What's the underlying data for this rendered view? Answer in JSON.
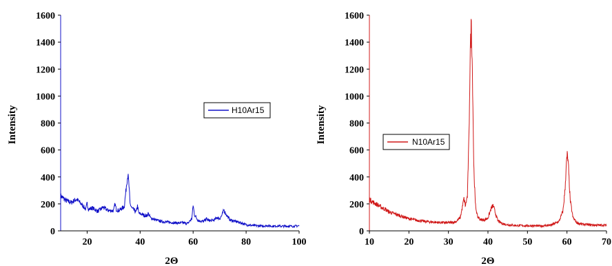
{
  "chart_data": [
    {
      "type": "line",
      "title": "",
      "xlabel": "2Θ",
      "ylabel": "Intensity",
      "xlim": [
        10,
        100
      ],
      "ylim": [
        0,
        1600
      ],
      "xticks": [
        20,
        40,
        60,
        80,
        100
      ],
      "yticks": [
        0,
        200,
        400,
        600,
        800,
        1000,
        1200,
        1400,
        1600
      ],
      "grid": false,
      "legend": "middle-right",
      "series": [
        {
          "name": "H10Ar15",
          "color": "#1010c8",
          "x": [
            10,
            12,
            14,
            16,
            18,
            19.5,
            20,
            20.5,
            22,
            24,
            26,
            28,
            30,
            30.5,
            31,
            32,
            33,
            34,
            34.6,
            35,
            35.4,
            35.8,
            36.2,
            37,
            38.5,
            39,
            39.5,
            41,
            42.5,
            43,
            44,
            46,
            48,
            50,
            52,
            54,
            56,
            58,
            59.5,
            60,
            60.5,
            62,
            64,
            65,
            66,
            68,
            69,
            70,
            71,
            71.6,
            72.5,
            74,
            76,
            78,
            80,
            82,
            84,
            86,
            88,
            90,
            92,
            94,
            96,
            98,
            100
          ],
          "y": [
            260,
            225,
            210,
            235,
            195,
            160,
            205,
            160,
            170,
            145,
            175,
            150,
            150,
            200,
            160,
            150,
            165,
            180,
            290,
            370,
            420,
            330,
            200,
            165,
            140,
            185,
            130,
            120,
            110,
            130,
            95,
            80,
            70,
            65,
            62,
            58,
            60,
            55,
            90,
            190,
            120,
            75,
            70,
            90,
            75,
            80,
            100,
            90,
            120,
            155,
            120,
            80,
            70,
            60,
            45,
            40,
            38,
            36,
            38,
            35,
            36,
            34,
            35,
            34,
            38
          ]
        }
      ]
    },
    {
      "type": "line",
      "title": "",
      "xlabel": "2Θ",
      "ylabel": "Intensity",
      "xlim": [
        10,
        70
      ],
      "ylim": [
        0,
        1600
      ],
      "xticks": [
        10,
        20,
        30,
        40,
        50,
        60,
        70
      ],
      "yticks": [
        0,
        200,
        400,
        600,
        800,
        1000,
        1200,
        1400,
        1600
      ],
      "grid": false,
      "legend": "middle-left",
      "series": [
        {
          "name": "N10Ar15",
          "color": "#d01818",
          "x": [
            10,
            11,
            12,
            13,
            14,
            15,
            16,
            17,
            18,
            19,
            20,
            22,
            24,
            26,
            28,
            30,
            31,
            32,
            33,
            33.5,
            33.9,
            34.3,
            34.8,
            35.2,
            35.5,
            35.8,
            36.1,
            36.4,
            36.8,
            37.3,
            38,
            39,
            40,
            40.8,
            41.3,
            41.8,
            42.5,
            43.5,
            45,
            47,
            50,
            53,
            56,
            58,
            59,
            59.5,
            59.8,
            60.1,
            60.4,
            60.8,
            61.5,
            62.5,
            64,
            66,
            68,
            70
          ],
          "y": [
            235,
            210,
            195,
            175,
            160,
            140,
            130,
            120,
            110,
            100,
            90,
            78,
            70,
            65,
            62,
            60,
            62,
            70,
            100,
            170,
            240,
            185,
            260,
            700,
            1300,
            1560,
            1150,
            500,
            200,
            110,
            85,
            80,
            95,
            165,
            190,
            140,
            75,
            55,
            45,
            40,
            38,
            36,
            42,
            70,
            150,
            300,
            480,
            570,
            460,
            230,
            100,
            60,
            48,
            45,
            42,
            42
          ]
        }
      ]
    }
  ]
}
